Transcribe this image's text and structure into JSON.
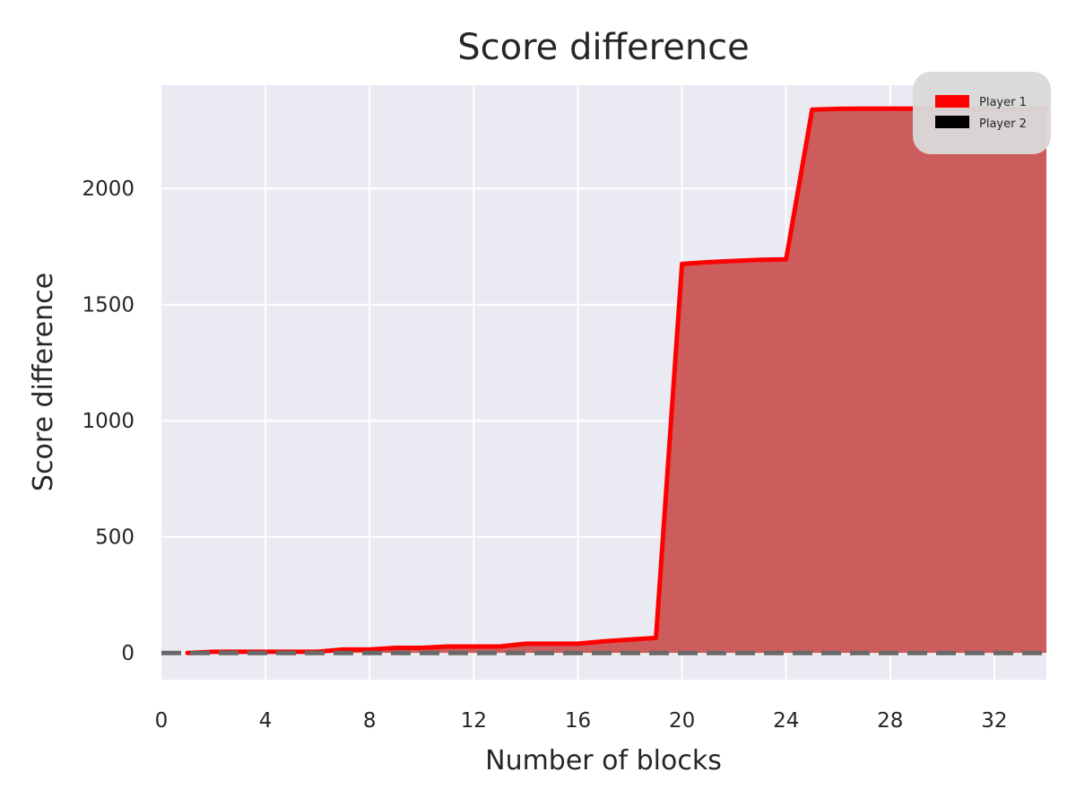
{
  "chart_data": {
    "type": "area",
    "title": "Score difference",
    "xlabel": "Number of blocks",
    "ylabel": "Score difference",
    "xlim": [
      0,
      34
    ],
    "ylim": [
      -115,
      2445
    ],
    "xticks": [
      0,
      4,
      8,
      12,
      16,
      20,
      24,
      28,
      32
    ],
    "yticks": [
      0,
      500,
      1000,
      1500,
      2000
    ],
    "grid": true,
    "legend_position": "top-right",
    "series": [
      {
        "name": "Player 1",
        "color": "#ff0000",
        "fill_color": "#cd5c5c",
        "x": [
          1,
          2,
          3,
          4,
          5,
          6,
          7,
          8,
          9,
          10,
          11,
          12,
          13,
          14,
          15,
          16,
          17,
          18,
          19,
          20,
          21,
          22,
          23,
          24,
          25,
          26,
          27,
          28,
          29,
          30,
          31,
          32,
          33,
          34
        ],
        "y": [
          0,
          5,
          5,
          5,
          5,
          5,
          15,
          15,
          22,
          22,
          28,
          28,
          28,
          40,
          40,
          40,
          50,
          58,
          65,
          1675,
          1683,
          1688,
          1693,
          1695,
          2340,
          2343,
          2344,
          2344,
          2344,
          2344,
          2344,
          2344,
          2344,
          2344
        ]
      },
      {
        "name": "Player 2",
        "color": "#000000"
      }
    ],
    "reference_line": {
      "y": 0,
      "style": "dashed",
      "color": "#696969"
    }
  }
}
